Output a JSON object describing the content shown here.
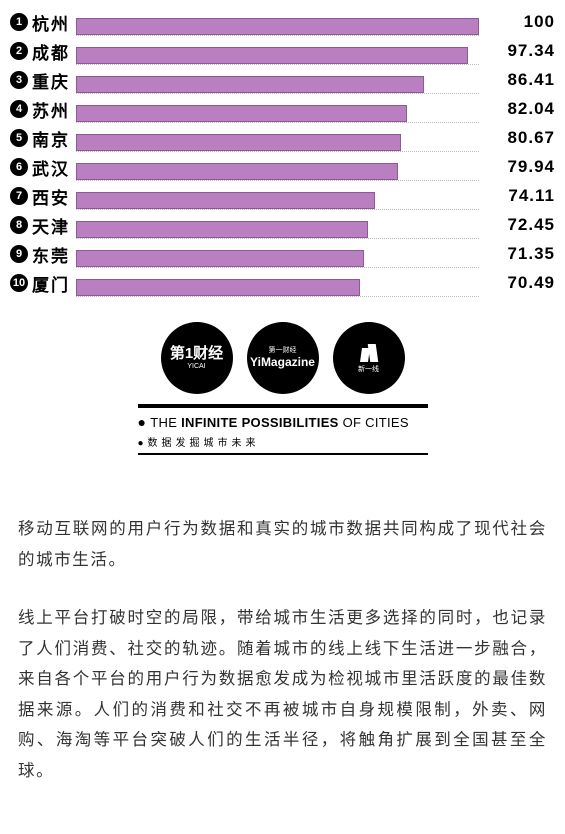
{
  "chart": {
    "type": "bar",
    "bar_color": "#b97fc0",
    "bar_border_color": "#8a5a95",
    "max_value": 100,
    "rows": [
      {
        "rank": "1",
        "city": "杭州",
        "value": 100,
        "display": "100"
      },
      {
        "rank": "2",
        "city": "成都",
        "value": 97.34,
        "display": "97.34"
      },
      {
        "rank": "3",
        "city": "重庆",
        "value": 86.41,
        "display": "86.41"
      },
      {
        "rank": "4",
        "city": "苏州",
        "value": 82.04,
        "display": "82.04"
      },
      {
        "rank": "5",
        "city": "南京",
        "value": 80.67,
        "display": "80.67"
      },
      {
        "rank": "6",
        "city": "武汉",
        "value": 79.94,
        "display": "79.94"
      },
      {
        "rank": "7",
        "city": "西安",
        "value": 74.11,
        "display": "74.11"
      },
      {
        "rank": "8",
        "city": "天津",
        "value": 72.45,
        "display": "72.45"
      },
      {
        "rank": "9",
        "city": "东莞",
        "value": 71.35,
        "display": "71.35"
      },
      {
        "rank": "10",
        "city": "厦门",
        "value": 70.49,
        "display": "70.49"
      }
    ]
  },
  "brand": {
    "logo1_main": "第1财经",
    "logo1_sub": "YICAI",
    "logo2_top": "第一财经",
    "logo2_main": "YiMagazine",
    "logo3_sub": "新一线",
    "tagline_en_1": "THE",
    "tagline_en_2": "INFINITE POSSIBILITIES",
    "tagline_en_3": "OF CITIES",
    "tagline_cn": "数据发掘城市未来"
  },
  "article": {
    "p1": "移动互联网的用户行为数据和真实的城市数据共同构成了现代社会的城市生活。",
    "p2": "线上平台打破时空的局限，带给城市生活更多选择的同时，也记录了人们消费、社交的轨迹。随着城市的线上线下生活进一步融合，来自各个平台的用户行为数据愈发成为检视城市里活跃度的最佳数据来源。人们的消费和社交不再被城市自身规模限制，外卖、网购、海淘等平台突破人们的生活半径，将触角扩展到全国甚至全球。"
  }
}
